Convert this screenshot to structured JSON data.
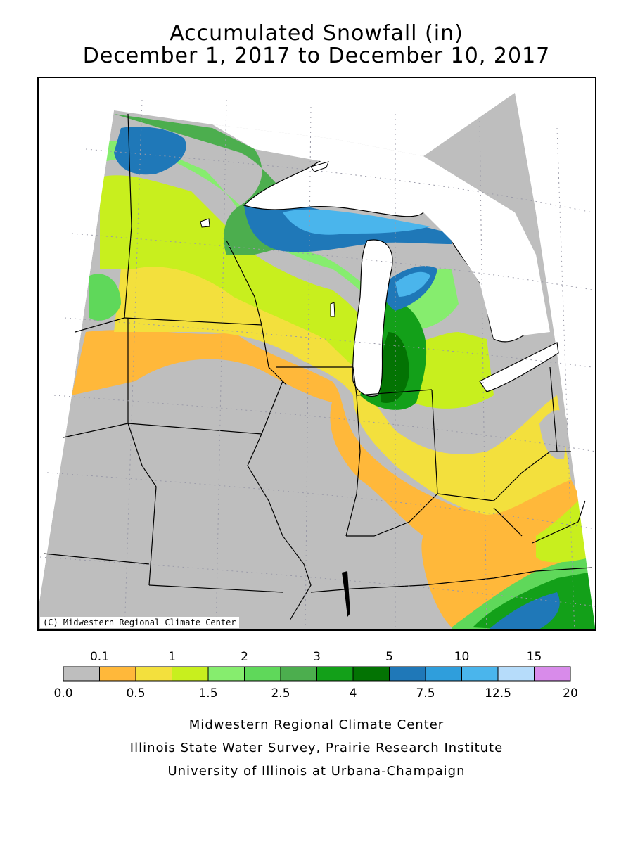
{
  "title": {
    "line1": "Accumulated Snowfall (in)",
    "line2": "December 1, 2017 to December 10, 2017"
  },
  "map": {
    "copyright": "(C) Midwestern Regional Climate Center"
  },
  "legend": {
    "top_labels": [
      "0.1",
      "1",
      "2",
      "3",
      "5",
      "10",
      "15"
    ],
    "bottom_labels": [
      "0.0",
      "0.5",
      "1.5",
      "2.5",
      "4",
      "7.5",
      "12.5",
      "20"
    ],
    "colors": [
      "#bebebe",
      "#ffb83a",
      "#f3e03d",
      "#c8ef1e",
      "#86ed6e",
      "#5fd85a",
      "#4cae4e",
      "#13a019",
      "#037303",
      "#1f78b8",
      "#2f9edc",
      "#4ab5ec",
      "#b6dcfa",
      "#d88bea"
    ],
    "water_color": "#ffffff",
    "land_base_color": "#bebebe"
  },
  "credits": {
    "line1": "Midwestern Regional Climate Center",
    "line2": "Illinois State Water Survey, Prairie Research Institute",
    "line3": "University of Illinois at Urbana-Champaign"
  }
}
